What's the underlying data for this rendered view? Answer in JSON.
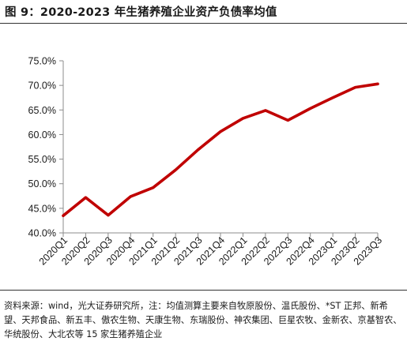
{
  "figure": {
    "title": "图 9：2020-2023 年生猪养殖企业资产负债率均值",
    "source": "资料来源：wind，光大证券研究所，注：均值测算主要来自牧原股份、温氏股份、*ST 正邦、新希望、天邦食品、新五丰、傲农生物、天康生物、东瑞股份、神农集团、巨星农牧、金新农、京基智农、华统股份、大北农等 15 家生猪养殖企业"
  },
  "chart_data": {
    "type": "line",
    "categories": [
      "2020Q1",
      "2020Q2",
      "2020Q3",
      "2020Q4",
      "2021Q1",
      "2021Q2",
      "2021Q3",
      "2021Q4",
      "2022Q1",
      "2022Q2",
      "2022Q3",
      "2022Q4",
      "2023Q1",
      "2023Q2",
      "2023Q3"
    ],
    "series": [
      {
        "values": [
          43.5,
          47.2,
          43.6,
          47.4,
          49.2,
          52.8,
          56.9,
          60.6,
          63.3,
          64.9,
          62.9,
          65.3,
          67.5,
          69.6,
          70.3
        ]
      }
    ],
    "ylim": [
      40,
      75
    ],
    "yticks": [
      40,
      45,
      50,
      55,
      60,
      65,
      70,
      75
    ],
    "ytick_labels": [
      "40.0%",
      "45.0%",
      "50.0%",
      "55.0%",
      "60.0%",
      "65.0%",
      "70.0%",
      "75.0%"
    ],
    "line_color": "#c00000",
    "grid": false,
    "legend": "none"
  }
}
